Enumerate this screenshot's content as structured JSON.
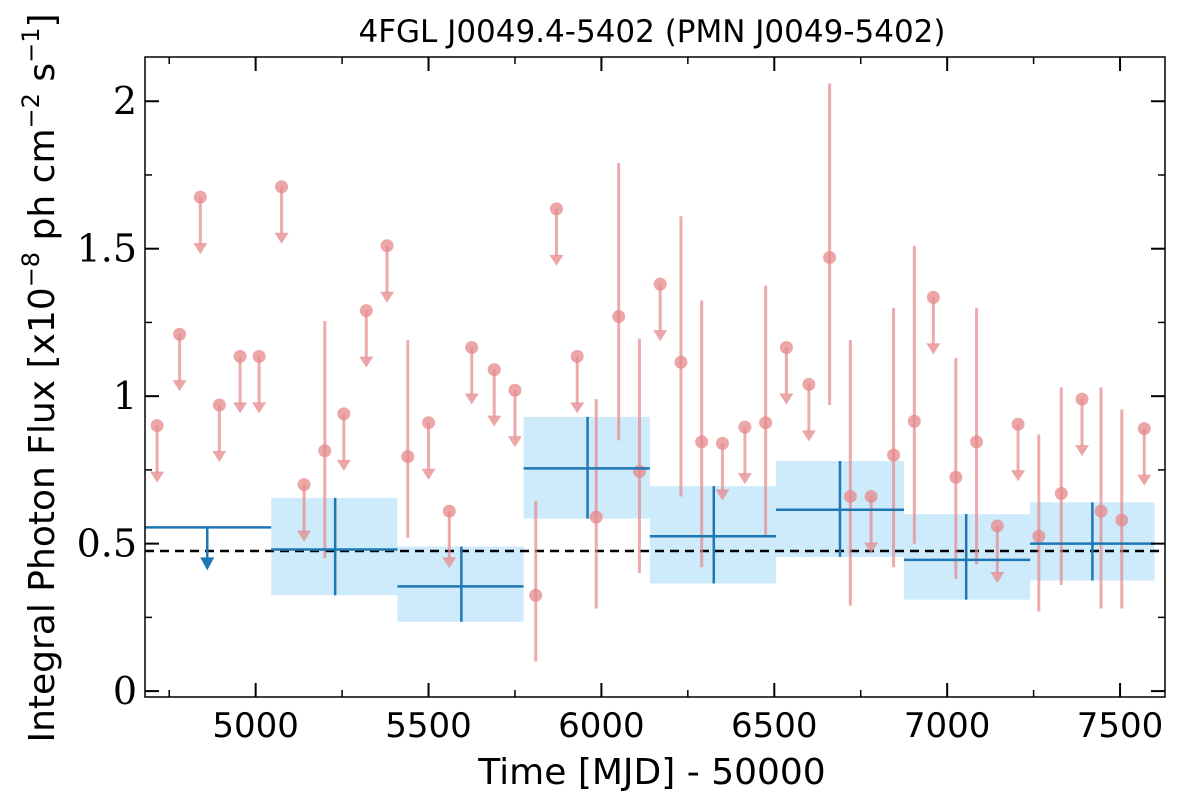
{
  "chart_data": {
    "type": "scatter",
    "title": "4FGL J0049.4-5402 (PMN J0049-5402)",
    "xlabel": "Time [MJD] - 50000",
    "ylabel_parts": {
      "prefix": "Integral Photon Flux [x10",
      "exp1": "−8",
      "mid": " ph cm",
      "exp2": "−2",
      "mid2": " s",
      "exp3": "−1",
      "suffix": "]"
    },
    "xlim": [
      4680,
      7630
    ],
    "ylim": [
      -0.02,
      2.15
    ],
    "x_ticks": [
      {
        "v": 5000,
        "label": "5000"
      },
      {
        "v": 5500,
        "label": "5500"
      },
      {
        "v": 6000,
        "label": "6000"
      },
      {
        "v": 6500,
        "label": "6500"
      },
      {
        "v": 7000,
        "label": "7000"
      },
      {
        "v": 7500,
        "label": "7500"
      }
    ],
    "y_ticks": [
      {
        "v": 0,
        "label": "0"
      },
      {
        "v": 0.5,
        "label": "0.5"
      },
      {
        "v": 1,
        "label": "1"
      },
      {
        "v": 1.5,
        "label": "1.5"
      },
      {
        "v": 2,
        "label": "2"
      }
    ],
    "x_minor_step": 250,
    "y_minor_step": 0.25,
    "reference_line": {
      "y": 0.475,
      "style": "dashed",
      "color": "#000000"
    },
    "colors": {
      "short_bins": "#e6888b",
      "long_bins_line": "#1f77b4",
      "long_bins_box": "#cdebfb"
    },
    "short_bins": {
      "upper_limits": [
        {
          "x": 4715,
          "y": 0.9
        },
        {
          "x": 4780,
          "y": 1.21
        },
        {
          "x": 4840,
          "y": 1.675
        },
        {
          "x": 4895,
          "y": 0.97
        },
        {
          "x": 4955,
          "y": 1.135
        },
        {
          "x": 5010,
          "y": 1.135
        },
        {
          "x": 5075,
          "y": 1.71
        },
        {
          "x": 5140,
          "y": 0.7
        },
        {
          "x": 5255,
          "y": 0.94
        },
        {
          "x": 5320,
          "y": 1.29
        },
        {
          "x": 5380,
          "y": 1.51
        },
        {
          "x": 5500,
          "y": 0.91
        },
        {
          "x": 5560,
          "y": 0.61
        },
        {
          "x": 5625,
          "y": 1.165
        },
        {
          "x": 5690,
          "y": 1.09
        },
        {
          "x": 5750,
          "y": 1.02
        },
        {
          "x": 5870,
          "y": 1.635
        },
        {
          "x": 5930,
          "y": 1.135
        },
        {
          "x": 6170,
          "y": 1.38
        },
        {
          "x": 6350,
          "y": 0.84
        },
        {
          "x": 6415,
          "y": 0.895
        },
        {
          "x": 6535,
          "y": 1.165
        },
        {
          "x": 6600,
          "y": 1.04
        },
        {
          "x": 6780,
          "y": 0.66
        },
        {
          "x": 6960,
          "y": 1.335
        },
        {
          "x": 7145,
          "y": 0.56
        },
        {
          "x": 7205,
          "y": 0.905
        },
        {
          "x": 7390,
          "y": 0.99
        },
        {
          "x": 7570,
          "y": 0.89
        }
      ],
      "detections": [
        {
          "x": 5200,
          "y": 0.815,
          "ylo": 0.45,
          "yhi": 1.255
        },
        {
          "x": 5440,
          "y": 0.795,
          "ylo": 0.52,
          "yhi": 1.19
        },
        {
          "x": 5810,
          "y": 0.325,
          "ylo": 0.1,
          "yhi": 0.645
        },
        {
          "x": 5985,
          "y": 0.59,
          "ylo": 0.28,
          "yhi": 0.99
        },
        {
          "x": 6050,
          "y": 1.27,
          "ylo": 0.85,
          "yhi": 1.79
        },
        {
          "x": 6110,
          "y": 0.745,
          "ylo": 0.4,
          "yhi": 1.195
        },
        {
          "x": 6230,
          "y": 1.115,
          "ylo": 0.66,
          "yhi": 1.61
        },
        {
          "x": 6290,
          "y": 0.845,
          "ylo": 0.42,
          "yhi": 1.325
        },
        {
          "x": 6475,
          "y": 0.91,
          "ylo": 0.52,
          "yhi": 1.375
        },
        {
          "x": 6660,
          "y": 1.47,
          "ylo": 0.97,
          "yhi": 2.06
        },
        {
          "x": 6720,
          "y": 0.66,
          "ylo": 0.29,
          "yhi": 1.19
        },
        {
          "x": 6845,
          "y": 0.8,
          "ylo": 0.42,
          "yhi": 1.3
        },
        {
          "x": 6905,
          "y": 0.915,
          "ylo": 0.5,
          "yhi": 1.51
        },
        {
          "x": 7025,
          "y": 0.725,
          "ylo": 0.38,
          "yhi": 1.13
        },
        {
          "x": 7085,
          "y": 0.845,
          "ylo": 0.43,
          "yhi": 1.3
        },
        {
          "x": 7265,
          "y": 0.525,
          "ylo": 0.27,
          "yhi": 0.87
        },
        {
          "x": 7330,
          "y": 0.67,
          "ylo": 0.36,
          "yhi": 1.03
        },
        {
          "x": 7445,
          "y": 0.61,
          "ylo": 0.28,
          "yhi": 1.03
        },
        {
          "x": 7505,
          "y": 0.58,
          "ylo": 0.28,
          "yhi": 0.955
        }
      ]
    },
    "long_bins": {
      "upper_limits": [
        {
          "x": 4860,
          "x0": 4680,
          "x1": 5045,
          "y": 0.555
        }
      ],
      "detections": [
        {
          "x": 5230,
          "x0": 5045,
          "x1": 5410,
          "y": 0.48,
          "ylo": 0.325,
          "yhi": 0.655
        },
        {
          "x": 5595,
          "x0": 5410,
          "x1": 5775,
          "y": 0.355,
          "ylo": 0.235,
          "yhi": 0.49
        },
        {
          "x": 5960,
          "x0": 5775,
          "x1": 6140,
          "y": 0.755,
          "ylo": 0.585,
          "yhi": 0.93
        },
        {
          "x": 6325,
          "x0": 6140,
          "x1": 6505,
          "y": 0.525,
          "ylo": 0.365,
          "yhi": 0.695
        },
        {
          "x": 6690,
          "x0": 6505,
          "x1": 6875,
          "y": 0.615,
          "ylo": 0.455,
          "yhi": 0.78
        },
        {
          "x": 7055,
          "x0": 6875,
          "x1": 7240,
          "y": 0.445,
          "ylo": 0.31,
          "yhi": 0.6
        },
        {
          "x": 7420,
          "x0": 7240,
          "x1": 7600,
          "y": 0.5,
          "ylo": 0.375,
          "yhi": 0.64
        }
      ]
    }
  }
}
